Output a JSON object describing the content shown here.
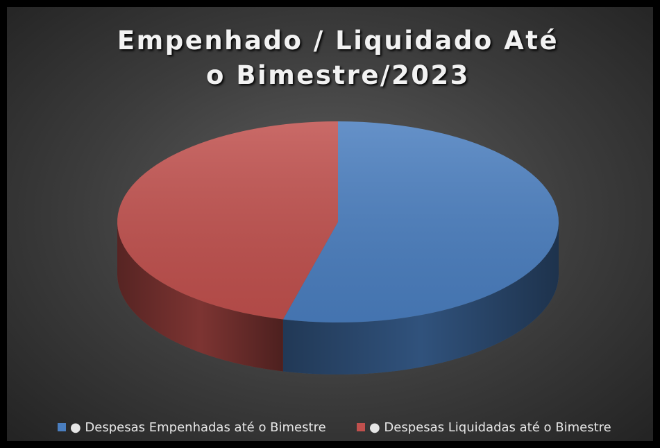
{
  "chart_data": {
    "type": "pie",
    "title": "Empenhado / Liquidado Até o Bimestre/2023",
    "categories": [
      "● Despesas Empenhadas até o Bimestre",
      "● Despesas Liquidadas até o Bimestre"
    ],
    "values": [
      54,
      46
    ],
    "colors": [
      "#4a7ebf",
      "#c0504d"
    ],
    "legend": "bottom"
  }
}
